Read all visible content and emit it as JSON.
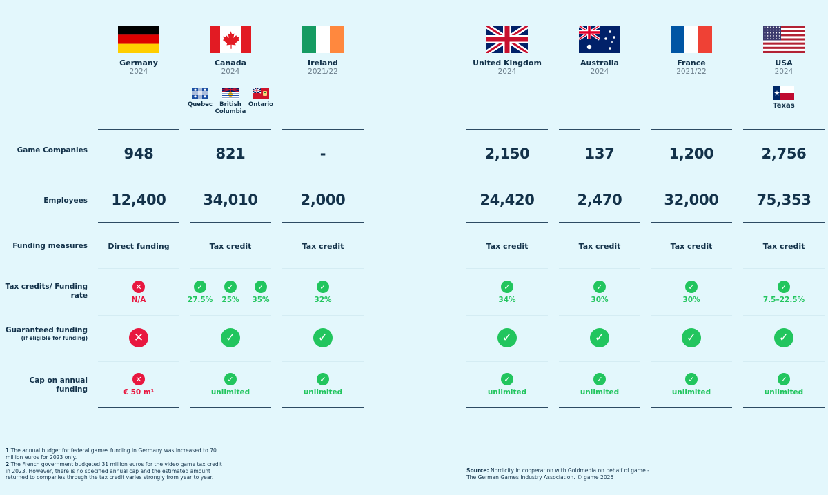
{
  "row_labels": {
    "companies": "Game Companies",
    "employees": "Employees",
    "funding": "Funding measures",
    "tax": "Tax credits/ Funding rate",
    "guaranteed": "Guaranteed funding",
    "guaranteed_sub": "(if eligible for funding)",
    "cap": "Cap on annual funding"
  },
  "countries": [
    {
      "name": "Germany",
      "year": "2024",
      "companies": "948",
      "employees": "12,400",
      "funding": "Direct funding",
      "rates": [
        "N/A"
      ],
      "rate_ok": false,
      "guaranteed": false,
      "cap": "€ 50 m¹",
      "cap_ok": false,
      "flag": "germany-flag"
    },
    {
      "name": "Canada",
      "year": "2024",
      "companies": "821",
      "employees": "34,010",
      "funding": "Tax credit",
      "rates": [
        "27.5%",
        "25%",
        "35%"
      ],
      "rate_ok": true,
      "guaranteed": true,
      "cap": "unlimited",
      "cap_ok": true,
      "flag": "canada-flag",
      "provinces": [
        {
          "name": "Quebec",
          "flag": "quebec-flag"
        },
        {
          "name": "British Columbia",
          "flag": "british-columbia-flag"
        },
        {
          "name": "Ontario",
          "flag": "ontario-flag"
        }
      ]
    },
    {
      "name": "Ireland",
      "year": "2021/22",
      "companies": "-",
      "employees": "2,000",
      "funding": "Tax credit",
      "rates": [
        "32%"
      ],
      "rate_ok": true,
      "guaranteed": true,
      "cap": "unlimited",
      "cap_ok": true,
      "flag": "ireland-flag"
    },
    {
      "name": "United Kingdom",
      "year": "2024",
      "companies": "2,150",
      "employees": "24,420",
      "funding": "Tax credit",
      "rates": [
        "34%"
      ],
      "rate_ok": true,
      "guaranteed": true,
      "cap": "unlimited",
      "cap_ok": true,
      "flag": "uk-flag"
    },
    {
      "name": "Australia",
      "year": "2024",
      "companies": "137",
      "employees": "2,470",
      "funding": "Tax credit",
      "rates": [
        "30%"
      ],
      "rate_ok": true,
      "guaranteed": true,
      "cap": "unlimited",
      "cap_ok": true,
      "flag": "australia-flag"
    },
    {
      "name": "France",
      "year": "2021/22",
      "companies": "1,200",
      "employees": "32,000",
      "funding": "Tax credit",
      "rates": [
        "30%"
      ],
      "rate_ok": true,
      "guaranteed": true,
      "cap": "unlimited",
      "cap_ok": true,
      "flag": "france-flag"
    },
    {
      "name": "USA",
      "year": "2024",
      "companies": "2,756",
      "employees": "75,353",
      "funding": "Tax credit",
      "rates": [
        "7.5–22.5%"
      ],
      "rate_ok": true,
      "guaranteed": true,
      "cap": "unlimited",
      "cap_ok": true,
      "flag": "usa-flag",
      "provinces": [
        {
          "name": "Texas",
          "flag": "texas-flag"
        }
      ]
    }
  ],
  "footnotes": {
    "n1_num": "1",
    "n1_text": "The annual budget for federal games funding in Germany was increased to 70 million euros for 2023 only.",
    "n2_num": "2",
    "n2_text": "The French government budgeted 31 million euros for the video game tax credit in 2023. However, there is no specified annual cap and the estimated amount returned to companies through the tax credit varies strongly from year to year."
  },
  "source": {
    "label": "Source:",
    "text": "Nordicity in cooperation with Goldmedia on behalf of game - The German Games Industry Association. © game 2025"
  },
  "colors": {
    "ok": "#22c55e",
    "no": "#e8173f",
    "text": "#13324a",
    "background": "#e3f7fc"
  }
}
